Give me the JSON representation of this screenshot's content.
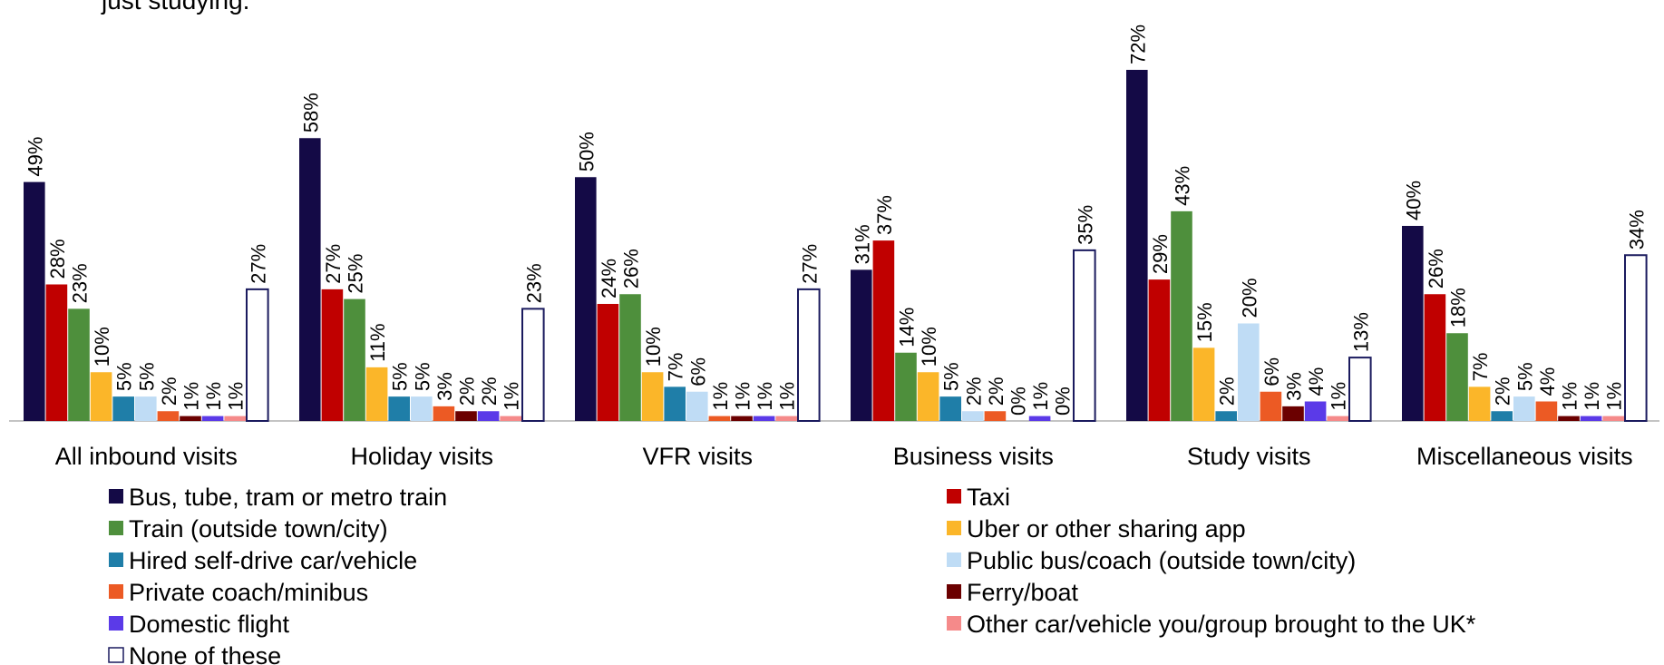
{
  "chart_data": {
    "type": "bar",
    "subtitle": "just studying.",
    "categories": [
      "All inbound visits",
      "Holiday visits",
      "VFR visits",
      "Business visits",
      "Study visits",
      "Miscellaneous visits"
    ],
    "ylim": [
      0,
      80
    ],
    "series": [
      {
        "name": "Bus, tube, tram or metro train",
        "color": "#140a46",
        "values": [
          49,
          58,
          50,
          31,
          72,
          40
        ],
        "value_labels": [
          "49%",
          "58%",
          "50%",
          "31%",
          "72%",
          "40%"
        ]
      },
      {
        "name": "Taxi",
        "color": "#c00000",
        "values": [
          28,
          27,
          24,
          37,
          29,
          26
        ],
        "value_labels": [
          "28%",
          "27%",
          "24%",
          "37%",
          "29%",
          "26%"
        ]
      },
      {
        "name": "Train (outside town/city)",
        "color": "#4e8f3c",
        "values": [
          23,
          25,
          26,
          14,
          43,
          18
        ],
        "value_labels": [
          "23%",
          "25%",
          "26%",
          "14%",
          "43%",
          "18%"
        ]
      },
      {
        "name": "Uber or other sharing app",
        "color": "#fbb629",
        "values": [
          10,
          11,
          10,
          10,
          15,
          7
        ],
        "value_labels": [
          "10%",
          "11%",
          "10%",
          "10%",
          "15%",
          "7%"
        ]
      },
      {
        "name": "Hired self-drive car/vehicle",
        "color": "#1f7ea8",
        "values": [
          5,
          5,
          7,
          5,
          2,
          2
        ],
        "value_labels": [
          "5%",
          "5%",
          "7%",
          "5%",
          "2%",
          "2%"
        ]
      },
      {
        "name": "Public bus/coach (outside town/city)",
        "color": "#bfdcf5",
        "values": [
          5,
          5,
          6,
          2,
          20,
          5
        ],
        "value_labels": [
          "5%",
          "5%",
          "6%",
          "2%",
          "20%",
          "5%"
        ]
      },
      {
        "name": "Private coach/minibus",
        "color": "#ec5a24",
        "values": [
          2,
          3,
          1,
          2,
          6,
          4
        ],
        "value_labels": [
          "2%",
          "3%",
          "1%",
          "2%",
          "6%",
          "4%"
        ]
      },
      {
        "name": "Ferry/boat",
        "color": "#6b0000",
        "values": [
          1,
          2,
          1,
          0,
          3,
          1
        ],
        "value_labels": [
          "1%",
          "2%",
          "1%",
          "0%",
          "3%",
          "1%"
        ]
      },
      {
        "name": "Domestic flight",
        "color": "#5b3ae8",
        "values": [
          1,
          2,
          1,
          1,
          4,
          1
        ],
        "value_labels": [
          "1%",
          "2%",
          "1%",
          "1%",
          "4%",
          "1%"
        ]
      },
      {
        "name": "Other car/vehicle you/group brought to the UK*",
        "color": "#f58a8a",
        "values": [
          1,
          1,
          1,
          0,
          1,
          1
        ],
        "value_labels": [
          "1%",
          "1%",
          "1%",
          "0%",
          "1%",
          "1%"
        ]
      },
      {
        "name": "None of these",
        "color": "#ffffff",
        "values": [
          27,
          23,
          27,
          35,
          13,
          34
        ],
        "value_labels": [
          "27%",
          "23%",
          "27%",
          "35%",
          "13%",
          "34%"
        ]
      }
    ]
  }
}
